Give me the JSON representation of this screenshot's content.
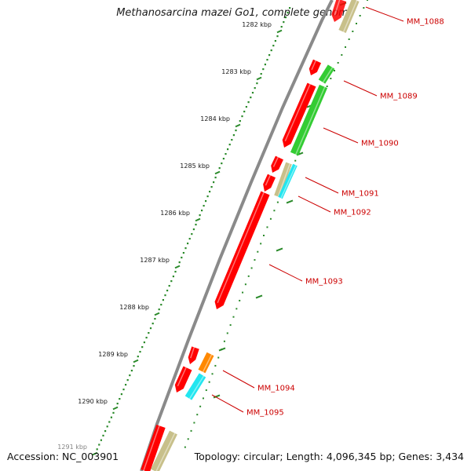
{
  "title": "Methanosarcina mazei Go1, complete genome",
  "footer": {
    "accession": "Accession: NC_003901",
    "summary": "Topology: circular; Length: 4,096,345 bp; Genes: 3,434"
  },
  "kbp_ticks": [
    "1282 kbp",
    "1283 kbp",
    "1284 kbp",
    "1285 kbp",
    "1286 kbp",
    "1287 kbp",
    "1288 kbp",
    "1289 kbp",
    "1290 kbp",
    "1291 kbp"
  ],
  "gene_labels": [
    "MM_1088",
    "MM_1089",
    "MM_1090",
    "MM_1091",
    "MM_1092",
    "MM_1093",
    "MM_1094",
    "MM_1095"
  ],
  "colors": {
    "backbone": "#8a8a8a",
    "tick": "#2a8a2a",
    "label": "#cc0000",
    "red": "#ff0000",
    "green": "#33cc33",
    "tan": "#c8c08a",
    "cyan": "#22e6f0",
    "orange": "#ff8800"
  }
}
